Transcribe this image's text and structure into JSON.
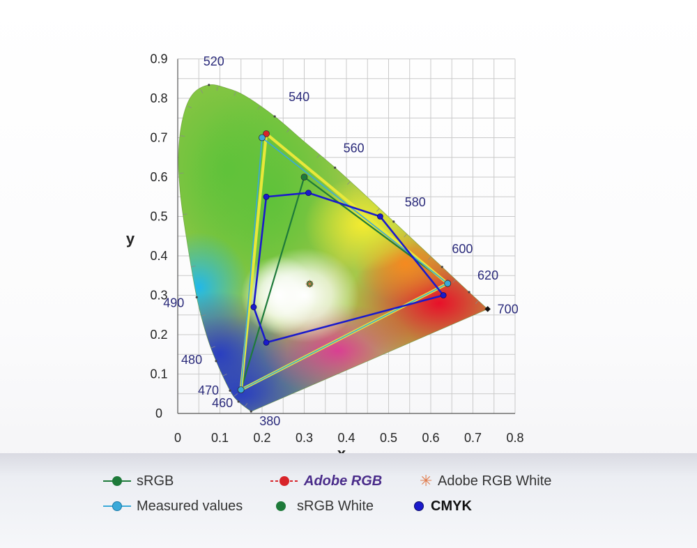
{
  "chart_data": {
    "type": "scatter",
    "xlabel": "x",
    "ylabel": "y",
    "xlim": [
      0,
      0.8
    ],
    "ylim": [
      0,
      0.9
    ],
    "grid": true,
    "x_ticks": [
      "0",
      "0.1",
      "0.2",
      "0.3",
      "0.4",
      "0.5",
      "0.6",
      "0.7",
      "0.8"
    ],
    "y_ticks": [
      "0",
      "0.1",
      "0.2",
      "0.3",
      "0.4",
      "0.5",
      "0.6",
      "0.7",
      "0.8",
      "0.9"
    ],
    "spectral_locus": [
      {
        "label": "380",
        "x": 0.174,
        "y": 0.005
      },
      {
        "label": "460",
        "x": 0.144,
        "y": 0.03
      },
      {
        "label": "470",
        "x": 0.124,
        "y": 0.058
      },
      {
        "label": "480",
        "x": 0.091,
        "y": 0.133
      },
      {
        "label": "490",
        "x": 0.045,
        "y": 0.295
      },
      {
        "label": "520",
        "x": 0.074,
        "y": 0.834
      },
      {
        "label": "540",
        "x": 0.23,
        "y": 0.754
      },
      {
        "label": "560",
        "x": 0.373,
        "y": 0.624
      },
      {
        "label": "580",
        "x": 0.512,
        "y": 0.487
      },
      {
        "label": "600",
        "x": 0.627,
        "y": 0.372
      },
      {
        "label": "620",
        "x": 0.691,
        "y": 0.308
      },
      {
        "label": "700",
        "x": 0.735,
        "y": 0.265
      }
    ],
    "series": [
      {
        "name": "sRGB",
        "kind": "polygon",
        "color": "#1e7a3a",
        "points": [
          [
            0.64,
            0.33
          ],
          [
            0.3,
            0.6
          ],
          [
            0.15,
            0.06
          ]
        ]
      },
      {
        "name": "Adobe RGB",
        "kind": "polygon",
        "color": "#e8e83a",
        "marker_color": "#d8242a",
        "points": [
          [
            0.64,
            0.33
          ],
          [
            0.21,
            0.71
          ],
          [
            0.15,
            0.06
          ]
        ]
      },
      {
        "name": "Measured values",
        "kind": "polygon",
        "color": "#3aa9d9",
        "points": [
          [
            0.64,
            0.33
          ],
          [
            0.2,
            0.7
          ],
          [
            0.15,
            0.06
          ]
        ]
      },
      {
        "name": "CMYK",
        "kind": "polygon",
        "color": "#1a1acc",
        "points": [
          [
            0.21,
            0.55
          ],
          [
            0.31,
            0.56
          ],
          [
            0.48,
            0.5
          ],
          [
            0.63,
            0.3
          ],
          [
            0.21,
            0.18
          ],
          [
            0.18,
            0.27
          ]
        ]
      },
      {
        "name": "sRGB White",
        "kind": "point",
        "color": "#1e7a3a",
        "points": [
          [
            0.313,
            0.329
          ]
        ]
      },
      {
        "name": "Adobe RGB White",
        "kind": "point",
        "color": "#e07a4a",
        "points": [
          [
            0.313,
            0.329
          ]
        ]
      }
    ]
  },
  "legend": {
    "srgb": "sRGB",
    "adobe_rgb": "Adobe RGB",
    "adobe_rgb_white": "Adobe RGB White",
    "measured": "Measured values",
    "srgb_white": "sRGB White",
    "cmyk": "CMYK"
  },
  "colors": {
    "srgb": "#1e7a3a",
    "adobe_line": "#e8e83a",
    "adobe_marker": "#d8242a",
    "measured": "#3aa9d9",
    "cmyk": "#1a1acc",
    "white_point": "#e07a4a"
  }
}
